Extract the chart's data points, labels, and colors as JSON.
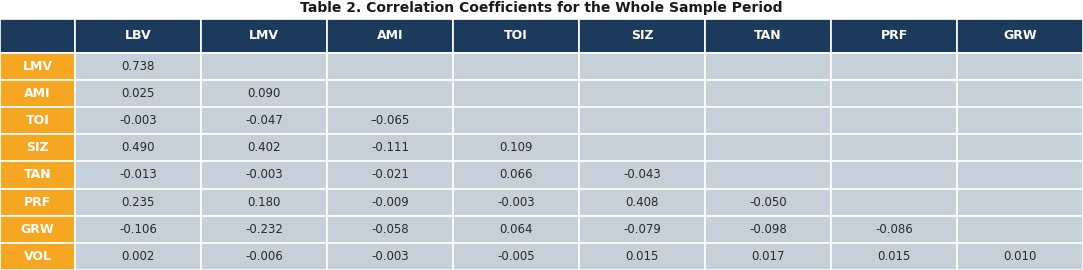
{
  "title": "Table 2. Correlation Coefficients for the Whole Sample Period",
  "col_headers": [
    "",
    "LBV",
    "LMV",
    "AMI",
    "TOI",
    "SIZ",
    "TAN",
    "PRF",
    "GRW"
  ],
  "row_headers": [
    "LMV",
    "AMI",
    "TOI",
    "SIZ",
    "TAN",
    "PRF",
    "GRW",
    "VOL"
  ],
  "table_data": [
    [
      "0.738",
      "",
      "",
      "",
      "",
      "",
      "",
      ""
    ],
    [
      "0.025",
      "0.090",
      "",
      "",
      "",
      "",
      "",
      ""
    ],
    [
      "-0.003",
      "-0.047",
      "–0.065",
      "",
      "",
      "",
      "",
      ""
    ],
    [
      "0.490",
      "0.402",
      "-0.111",
      "0.109",
      "",
      "",
      "",
      ""
    ],
    [
      "-0.013",
      "-0.003",
      "-0.021",
      "0.066",
      "-0.043",
      "",
      "",
      ""
    ],
    [
      "0.235",
      "0.180",
      "-0.009",
      "-0.003",
      "0.408",
      "-0.050",
      "",
      ""
    ],
    [
      "-0.106",
      "-0.232",
      "-0.058",
      "0.064",
      "-0.079",
      "-0.098",
      "-0.086",
      ""
    ],
    [
      "0.002",
      "-0.006",
      "-0.003",
      "-0.005",
      "0.015",
      "0.017",
      "0.015",
      "0.010"
    ]
  ],
  "header_bg": "#1b3a5c",
  "header_text_color": "#ffffff",
  "row_label_bg": "#f5a623",
  "row_label_text_color": "#ffffff",
  "cell_bg": "#c5d0d8",
  "cell_text_color": "#2a2a2a",
  "border_color": "#ffffff",
  "figsize": [
    10.83,
    2.7
  ],
  "dpi": 100,
  "title_fontsize": 10,
  "header_fontsize": 9,
  "cell_fontsize": 8.5,
  "row_label_fontsize": 9
}
